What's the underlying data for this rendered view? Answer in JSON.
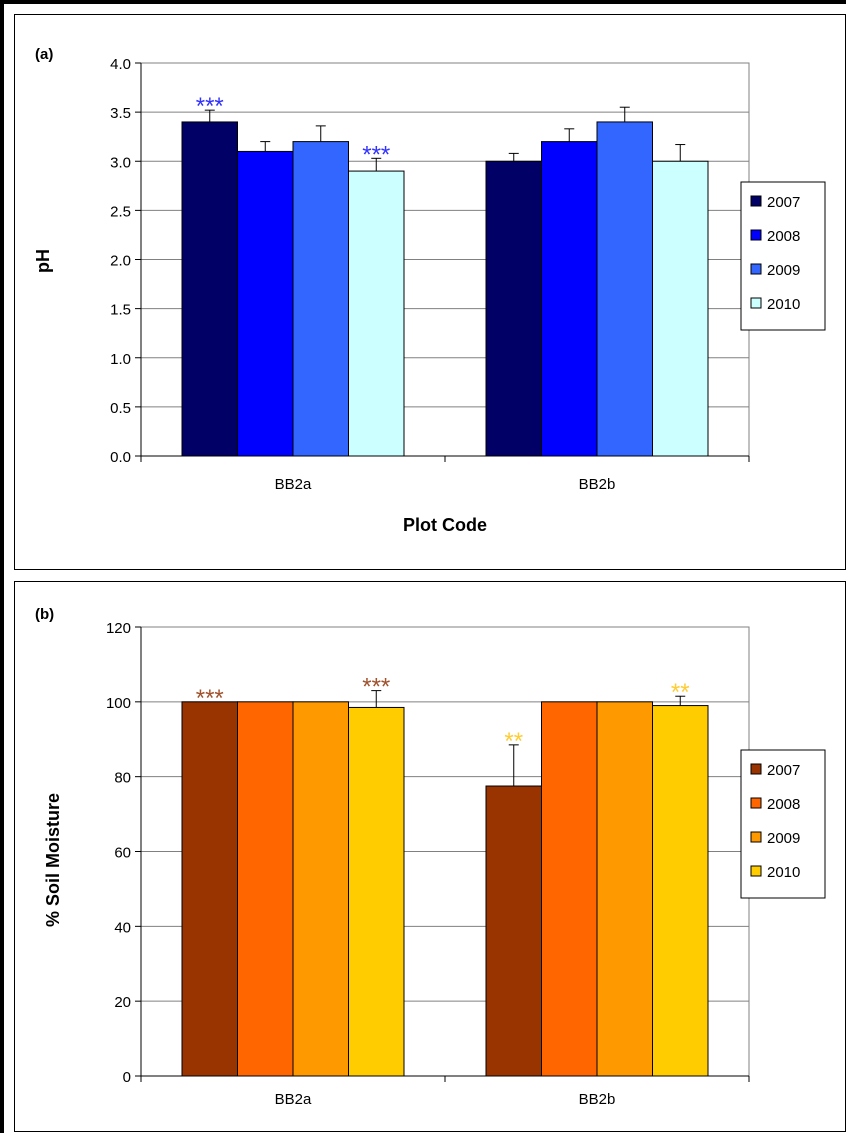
{
  "chart_data": [
    {
      "type": "bar",
      "panel_label": "(a)",
      "title": "",
      "xlabel": "Plot Code",
      "ylabel": "pH",
      "ylim": [
        0,
        4.0
      ],
      "yticks": [
        "0.0",
        "0.5",
        "1.0",
        "1.5",
        "2.0",
        "2.5",
        "3.0",
        "3.5",
        "4.0"
      ],
      "categories": [
        "BB2a",
        "BB2b"
      ],
      "grid": true,
      "legend_position": "right",
      "series": [
        {
          "name": "2007",
          "color": "#000066",
          "values": [
            3.4,
            3.0
          ],
          "errors": [
            0.12,
            0.08
          ]
        },
        {
          "name": "2008",
          "color": "#0000ff",
          "values": [
            3.1,
            3.2
          ],
          "errors": [
            0.1,
            0.13
          ]
        },
        {
          "name": "2009",
          "color": "#3366ff",
          "values": [
            3.2,
            3.4
          ],
          "errors": [
            0.16,
            0.15
          ]
        },
        {
          "name": "2010",
          "color": "#ccffff",
          "values": [
            2.9,
            3.0
          ],
          "errors": [
            0.13,
            0.17
          ]
        }
      ],
      "annotations": [
        {
          "text": "***",
          "category": "BB2a",
          "series": "2007",
          "color": "#3333ff"
        },
        {
          "text": "***",
          "category": "BB2a",
          "series": "2010",
          "color": "#3333ff"
        }
      ]
    },
    {
      "type": "bar",
      "panel_label": "(b)",
      "title": "",
      "xlabel": "Plot Code",
      "ylabel": "% Soil Moisture",
      "ylim": [
        0,
        120
      ],
      "yticks": [
        "0",
        "20",
        "40",
        "60",
        "80",
        "100",
        "120"
      ],
      "categories": [
        "BB2a",
        "BB2b"
      ],
      "grid": true,
      "legend_position": "right",
      "series": [
        {
          "name": "2007",
          "color": "#993300",
          "values": [
            100,
            77.5
          ],
          "errors": [
            0,
            11
          ]
        },
        {
          "name": "2008",
          "color": "#ff6600",
          "values": [
            100,
            100
          ],
          "errors": [
            0,
            0
          ]
        },
        {
          "name": "2009",
          "color": "#ff9900",
          "values": [
            100,
            100
          ],
          "errors": [
            0,
            0
          ]
        },
        {
          "name": "2010",
          "color": "#ffcc00",
          "values": [
            98.5,
            99
          ],
          "errors": [
            4.5,
            2.5
          ]
        }
      ],
      "annotations": [
        {
          "text": "***",
          "category": "BB2a",
          "series": "2007",
          "color": "#a0522d"
        },
        {
          "text": "***",
          "category": "BB2a",
          "series": "2010",
          "color": "#a0522d"
        },
        {
          "text": "**",
          "category": "BB2b",
          "series": "2007",
          "color": "#ffcc33"
        },
        {
          "text": "**",
          "category": "BB2b",
          "series": "2010",
          "color": "#ffcc33"
        }
      ]
    }
  ]
}
